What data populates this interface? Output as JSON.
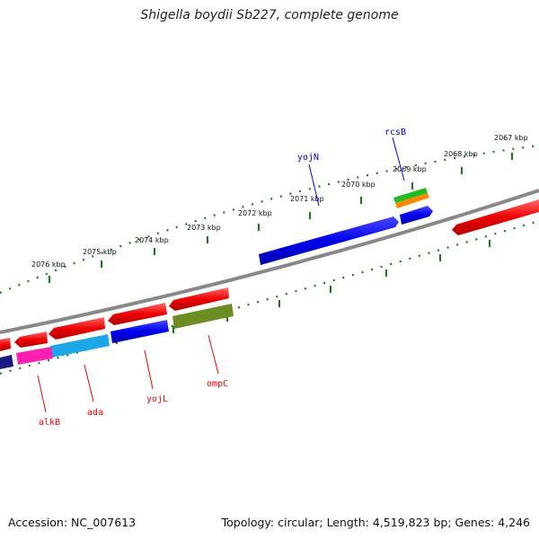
{
  "title": "Shigella boydii Sb227, complete genome",
  "footer": {
    "accession": "Accession: NC_007613",
    "summary": "Topology: circular; Length: 4,519,823 bp; Genes: 4,246"
  },
  "tick_labels": [
    "2067 kbp",
    "2068 kbp",
    "2069 kbp",
    "2070 kbp",
    "2071 kbp",
    "2072 kbp",
    "2073 kbp",
    "2074 kbp",
    "2075 kbp",
    "2076 kbp"
  ],
  "gene_labels": {
    "rcsB": "rcsB",
    "yojN": "yojN",
    "alkB": "alkB",
    "ada": "ada",
    "yojL": "yojL",
    "ompC": "ompC"
  },
  "colors": {
    "forward_gene": "#0000ee",
    "reverse_gene": "#ee0000",
    "tick": "#1a7a1a",
    "backbone": "#888888"
  }
}
